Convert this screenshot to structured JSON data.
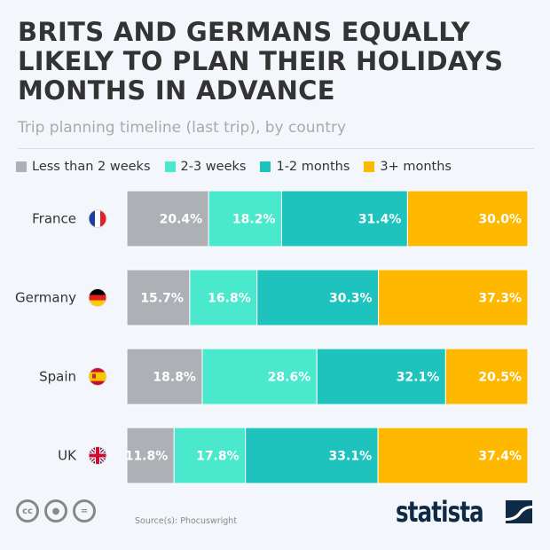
{
  "title": "BRITS AND GERMANS EQUALLY LIKELY TO PLAN THEIR HOLIDAYS MONTHS IN ADVANCE",
  "subtitle": "Trip planning timeline (last trip), by country",
  "source": "Source(s): Phocuswright",
  "brand": "statista",
  "license_icons": [
    "cc-icon",
    "attribution-icon",
    "no-derivatives-icon"
  ],
  "chart_data": {
    "type": "bar",
    "orientation": "horizontal",
    "stacked": true,
    "categories": [
      "France",
      "Germany",
      "Spain",
      "UK"
    ],
    "flags": [
      "france-flag-icon",
      "germany-flag-icon",
      "spain-flag-icon",
      "uk-flag-icon"
    ],
    "legend_position": "top-left",
    "grid": false,
    "series": [
      {
        "name": "Less than 2 weeks",
        "color": "#adb0b5",
        "values": [
          20.4,
          15.7,
          18.8,
          11.8
        ],
        "labels": [
          "20.4%",
          "15.7%",
          "18.8%",
          "11.8%"
        ]
      },
      {
        "name": "2-3 weeks",
        "color": "#4ae8cc",
        "values": [
          18.2,
          16.8,
          28.6,
          17.8
        ],
        "labels": [
          "18.2%",
          "16.8%",
          "28.6%",
          "17.8%"
        ]
      },
      {
        "name": "1-2 months",
        "color": "#1ec3bd",
        "values": [
          31.4,
          30.3,
          32.1,
          33.1
        ],
        "labels": [
          "31.4%",
          "30.3%",
          "32.1%",
          "33.1%"
        ]
      },
      {
        "name": "3+ months",
        "color": "#ffb800",
        "values": [
          30.0,
          37.3,
          20.5,
          37.4
        ],
        "labels": [
          "30.0%",
          "37.3%",
          "20.5%",
          "37.4%"
        ]
      }
    ]
  }
}
